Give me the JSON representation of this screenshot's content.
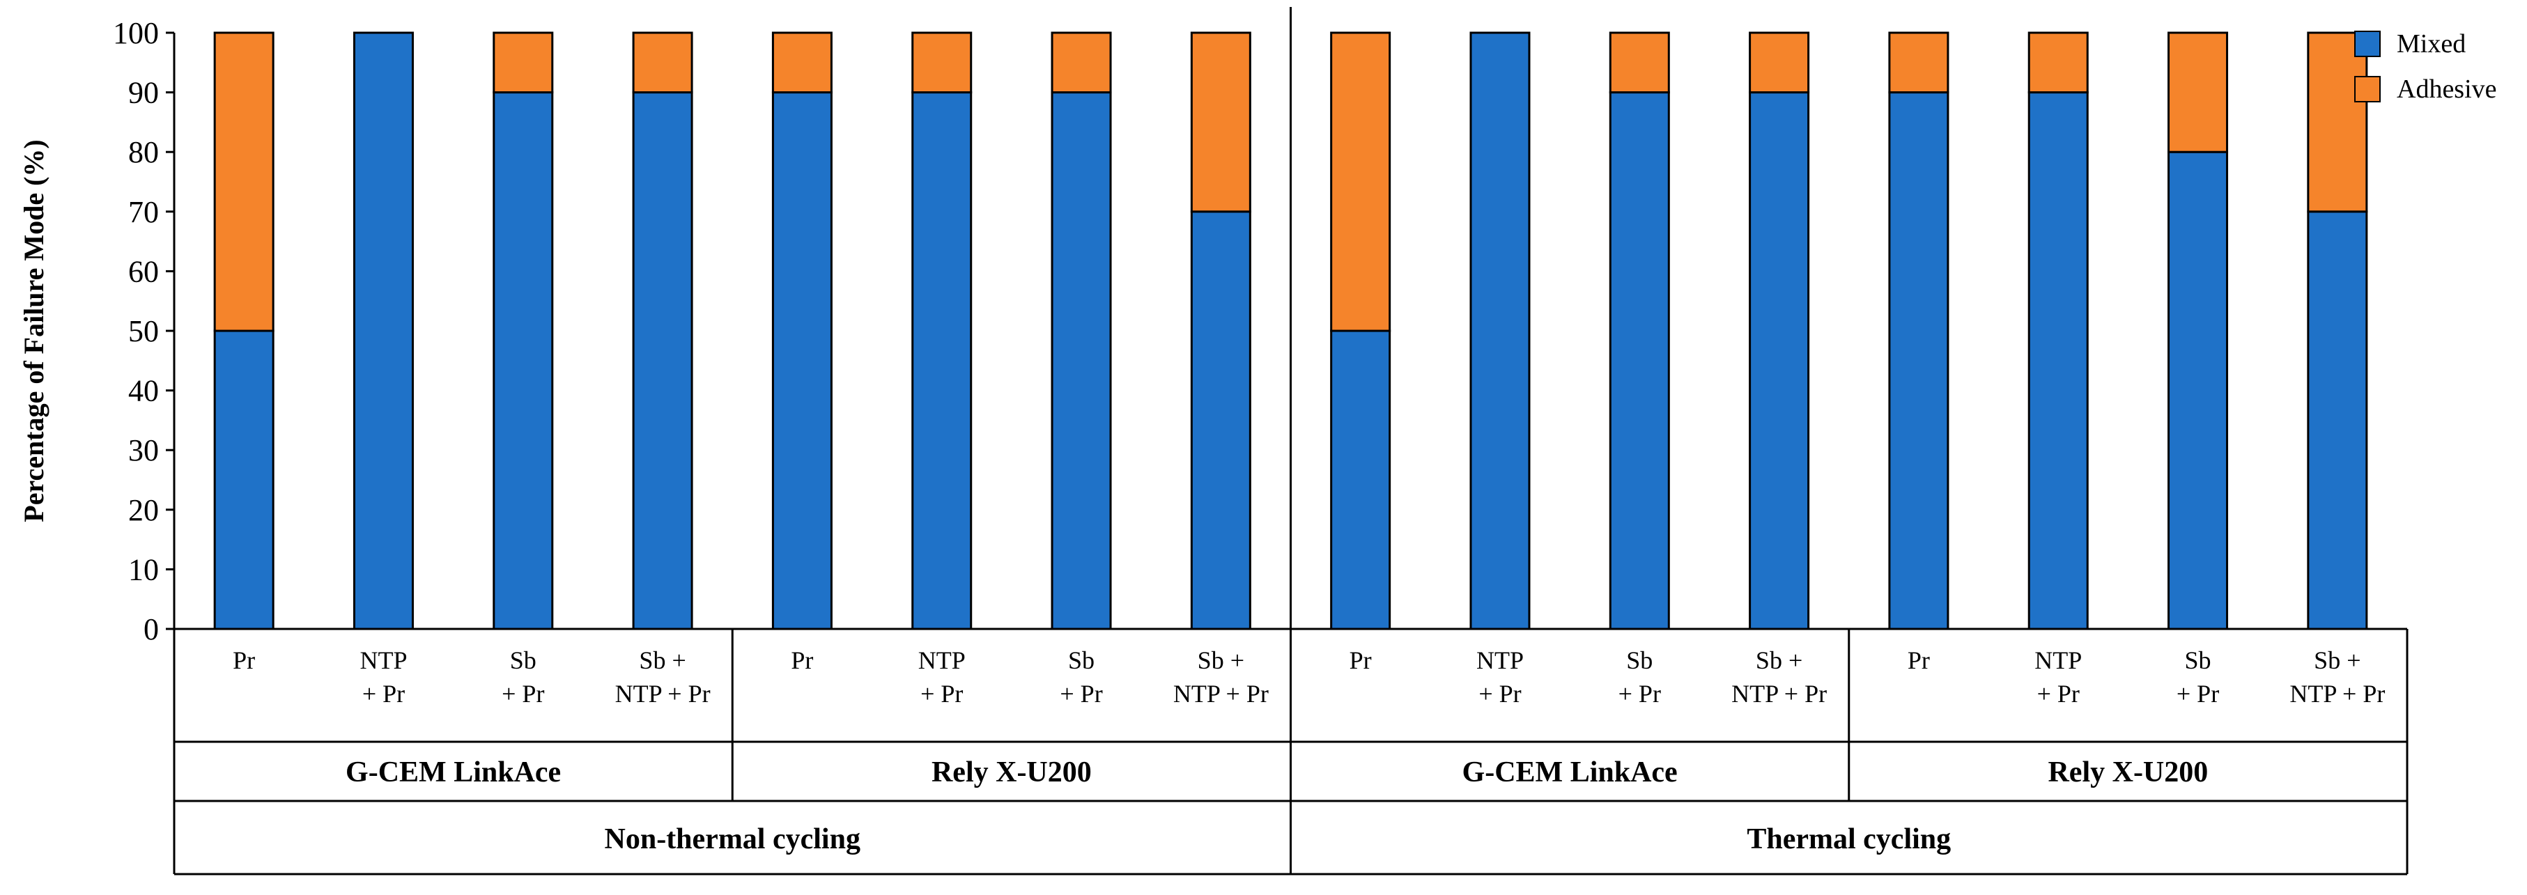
{
  "chart_data": {
    "type": "bar",
    "stacked": true,
    "title": "",
    "ylabel": "Percentage of Failure Mode (%)",
    "xlabel": "",
    "ylim": [
      0,
      100
    ],
    "yticks": [
      0,
      10,
      20,
      30,
      40,
      50,
      60,
      70,
      80,
      90,
      100
    ],
    "grid": false,
    "legend": "top-right",
    "categories": [
      [
        "Pr"
      ],
      [
        "NTP",
        "+ Pr"
      ],
      [
        "Sb",
        "+ Pr"
      ],
      [
        "Sb +",
        "NTP + Pr"
      ],
      [
        "Pr"
      ],
      [
        "NTP",
        "+ Pr"
      ],
      [
        "Sb",
        "+ Pr"
      ],
      [
        "Sb +",
        "NTP + Pr"
      ],
      [
        "Pr"
      ],
      [
        "NTP",
        "+ Pr"
      ],
      [
        "Sb",
        "+ Pr"
      ],
      [
        "Sb +",
        "NTP + Pr"
      ],
      [
        "Pr"
      ],
      [
        "NTP",
        "+ Pr"
      ],
      [
        "Sb",
        "+ Pr"
      ],
      [
        "Sb +",
        "NTP + Pr"
      ]
    ],
    "cement_groups": [
      {
        "label": "G-CEM LinkAce",
        "span": 4
      },
      {
        "label": "Rely X-U200",
        "span": 4
      },
      {
        "label": "G-CEM LinkAce",
        "span": 4
      },
      {
        "label": "Rely X-U200",
        "span": 4
      }
    ],
    "condition_groups": [
      {
        "label": "Non-thermal cycling",
        "span": 8
      },
      {
        "label": "Thermal cycling",
        "span": 8
      }
    ],
    "series": [
      {
        "name": "Mixed",
        "color": "#1f72c8",
        "values": [
          50,
          100,
          90,
          90,
          90,
          90,
          90,
          70,
          50,
          100,
          90,
          90,
          90,
          90,
          80,
          70
        ]
      },
      {
        "name": "Adhesive",
        "color": "#f5842b",
        "values": [
          50,
          0,
          10,
          10,
          10,
          10,
          10,
          30,
          50,
          0,
          10,
          10,
          10,
          10,
          20,
          30
        ]
      }
    ]
  }
}
